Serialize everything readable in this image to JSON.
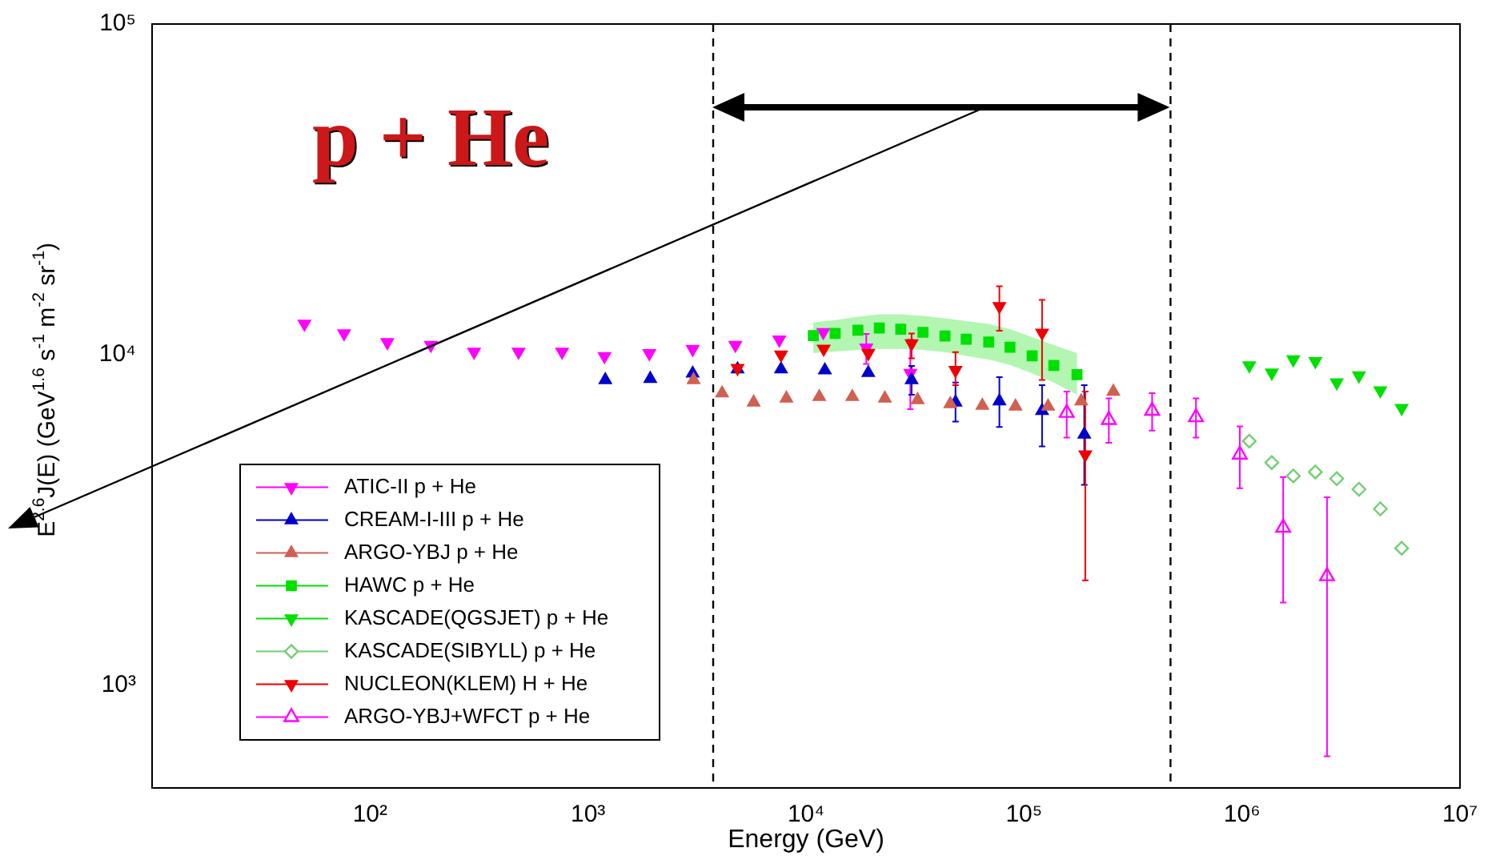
{
  "chart_data": {
    "type": "scatter",
    "xlabel": "Energy (GeV)",
    "ylabel": "E$^{2.6}$J(E) (GeV$^{1.6}$ s$^{-1}$ m$^{-2}$ sr$^{-1}$)",
    "log": "xy",
    "xlim": [
      10,
      10000000
    ],
    "ylim": [
      490,
      100000
    ],
    "xticks": [
      {
        "value": 100,
        "label": "10²"
      },
      {
        "value": 1000,
        "label": "10³"
      },
      {
        "value": 10000,
        "label": "10⁴"
      },
      {
        "value": 100000,
        "label": "10⁵"
      },
      {
        "value": 1000000,
        "label": "10⁶"
      },
      {
        "value": 10000000,
        "label": "10⁷"
      }
    ],
    "yticks": [
      {
        "value": 1000,
        "label": "10³"
      },
      {
        "value": 10000,
        "label": "10⁴"
      },
      {
        "value": 100000,
        "label": "10⁵"
      }
    ],
    "legend": "bottom left",
    "annotations": [
      "p + He"
    ],
    "ref_lines": [
      {
        "axis": "x",
        "value": 3750,
        "color": "#000000",
        "line_style": "dashed"
      },
      {
        "axis": "x",
        "value": 470000,
        "color": "#000000",
        "line_style": "dashed"
      }
    ],
    "series": [
      {
        "name": "ATIC-II p + He",
        "color": "#ff00ff",
        "marker": "triangle-down",
        "x": [
          50,
          76,
          120,
          190,
          300,
          480,
          760,
          1190,
          1910,
          3020,
          4740,
          7540,
          12000,
          18900,
          30100
        ],
        "values": [
          12400,
          11600,
          10900,
          10700,
          10200,
          10200,
          10200,
          9900,
          10100,
          10400,
          10700,
          11100,
          11700,
          10500,
          8800
        ],
        "errors": [
          null,
          null,
          null,
          null,
          null,
          null,
          null,
          null,
          null,
          null,
          null,
          null,
          null,
          [
            9380,
            11560
          ],
          [
            6850,
            11100
          ]
        ]
      },
      {
        "name": "CREAM-I-III p + He",
        "color": "#0000cc",
        "marker": "triangle",
        "x": [
          1200,
          1930,
          3020,
          4850,
          7680,
          12200,
          19300,
          30500,
          48500,
          77100,
          121000,
          189000
        ],
        "values": [
          8390,
          8460,
          8780,
          9040,
          9040,
          8980,
          8820,
          8390,
          7180,
          7240,
          6770,
          5740
        ],
        "errors": [
          null,
          null,
          null,
          null,
          null,
          null,
          null,
          [
            7570,
            9250
          ],
          [
            6280,
            8240
          ],
          [
            6050,
            8550
          ],
          [
            5280,
            8090
          ],
          [
            4040,
            8090
          ]
        ]
      },
      {
        "name": "ARGO-YBJ p + He",
        "color": "#d06050",
        "marker": "triangle",
        "x": [
          3050,
          4120,
          5750,
          8130,
          11500,
          16300,
          23000,
          32500,
          45900,
          64400,
          91400,
          129000,
          183000,
          257000
        ],
        "values": [
          8390,
          7650,
          7180,
          7380,
          7460,
          7460,
          7380,
          7300,
          7100,
          7020,
          6980,
          6980,
          7240,
          7740
        ]
      },
      {
        "name": "HAWC p + He",
        "color": "#00e000",
        "marker": "square",
        "x": [
          10800,
          13600,
          17300,
          21700,
          27200,
          34400,
          43400,
          54300,
          68900,
          86200,
          109000,
          137000,
          175000
        ],
        "values": [
          11430,
          11600,
          11860,
          12050,
          11950,
          11690,
          11400,
          11140,
          10930,
          10540,
          9920,
          9280,
          8710
        ],
        "upper": [
          12540,
          12730,
          13030,
          13260,
          13260,
          13110,
          12880,
          12640,
          12400,
          11950,
          11300,
          10690,
          10110
        ],
        "lower": [
          10110,
          10220,
          10340,
          10420,
          10420,
          10340,
          10190,
          9920,
          9670,
          9320,
          8780,
          8240,
          7570
        ]
      },
      {
        "name": "KASCADE(QGSJET) p + He",
        "color": "#00e000",
        "marker": "triangle-down",
        "x": [
          1080000,
          1370000,
          1720000,
          2170000,
          2720000,
          3440000,
          4310000,
          5400000
        ],
        "values": [
          9280,
          8820,
          9670,
          9560,
          8240,
          8650,
          7800,
          6900
        ]
      },
      {
        "name": "KASCADE(SIBYLL) p + He",
        "color": "#70d070",
        "marker": "diamond-open",
        "x": [
          1080000,
          1370000,
          1720000,
          2170000,
          2720000,
          3440000,
          4310000,
          5400000
        ],
        "values": [
          5480,
          4720,
          4300,
          4420,
          4220,
          3920,
          3420,
          2600
        ]
      },
      {
        "name": "NUCLEON(KLEM) H + He",
        "color": "#ee0000",
        "marker": "triangle-down",
        "x": [
          4850,
          7680,
          12050,
          19300,
          30500,
          48500,
          77100,
          121000,
          191000
        ],
        "values": [
          9110,
          10000,
          10420,
          10110,
          10810,
          8980,
          14020,
          11650,
          4990
        ],
        "errors": [
          null,
          null,
          null,
          null,
          [
            9750,
            11600
          ],
          [
            8090,
            10190
          ],
          [
            11820,
            16100
          ],
          [
            8390,
            14660
          ],
          [
            2080,
            7740
          ]
        ]
      },
      {
        "name": "ARGO-YBJ+WFCT p + He",
        "color": "#ff00ff",
        "marker": "triangle-open",
        "x": [
          157000,
          245000,
          387000,
          615000,
          977000,
          1545000,
          2455000
        ],
        "values": [
          6670,
          6350,
          6770,
          6470,
          4990,
          3000,
          2140
        ],
        "errors": [
          [
            5620,
            7740
          ],
          [
            5420,
            7380
          ],
          [
            5900,
            7650
          ],
          [
            5620,
            7380
          ],
          [
            3950,
            6070
          ],
          [
            1780,
            4270
          ],
          [
            611,
            3710
          ]
        ]
      }
    ]
  }
}
